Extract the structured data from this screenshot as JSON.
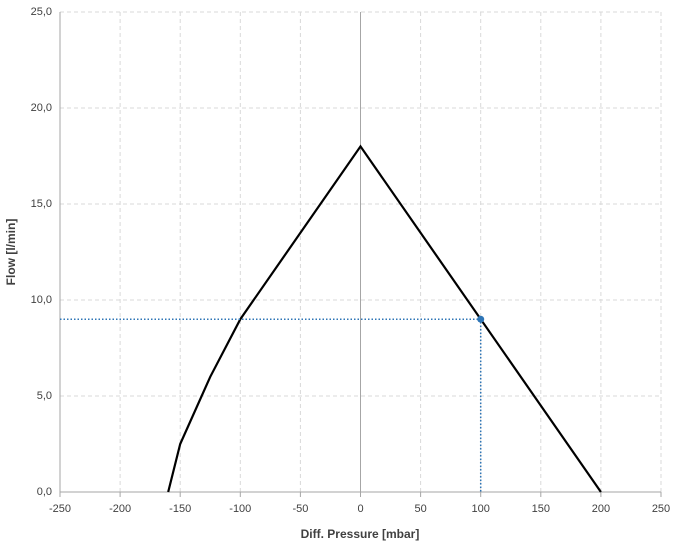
{
  "chart_data": {
    "type": "line",
    "xlabel": "Diff. Pressure [mbar]",
    "ylabel": "Flow [l/min]",
    "xlim": [
      -250,
      250
    ],
    "ylim": [
      0,
      25
    ],
    "xticks": [
      -250,
      -200,
      -150,
      -100,
      -50,
      0,
      50,
      100,
      150,
      200,
      250
    ],
    "yticks": [
      {
        "value": 0,
        "label": "0,0"
      },
      {
        "value": 5,
        "label": "5,0"
      },
      {
        "value": 10,
        "label": "10,0"
      },
      {
        "value": 15,
        "label": "15,0"
      },
      {
        "value": 20,
        "label": "20,0"
      },
      {
        "value": 25,
        "label": "25,0"
      }
    ],
    "grid": true,
    "series": [
      {
        "color": "#000000",
        "style": "solid",
        "x": [
          -160,
          -150,
          -125,
          -100,
          0,
          200
        ],
        "values": [
          0,
          2.5,
          6,
          9,
          18,
          0
        ]
      },
      {
        "color": "#2e75b6",
        "style": "dotted",
        "x": [
          -250,
          100,
          100
        ],
        "values": [
          9,
          9,
          0
        ]
      },
      {
        "color": "#2e75b6",
        "style": "marker",
        "x": [
          100
        ],
        "values": [
          9
        ]
      }
    ]
  }
}
